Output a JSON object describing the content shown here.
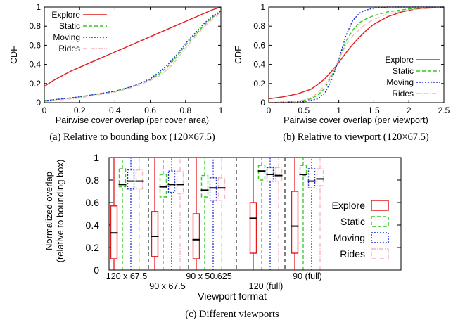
{
  "chart_data": [
    {
      "type": "line",
      "caption": "(a)  Relative to bounding box (120×67.5)",
      "xlabel": "Pairwise cover overlap (per cover area)",
      "ylabel": "CDF",
      "xlim": [
        0,
        1
      ],
      "ylim": [
        0,
        1
      ],
      "xticks": [
        "0",
        "0.2",
        "0.4",
        "0.6",
        "0.8",
        "1"
      ],
      "yticks": [
        "0",
        "0.2",
        "0.4",
        "0.6",
        "0.8",
        "1"
      ],
      "legend_position": "top-left",
      "series": [
        {
          "name": "Explore",
          "color": "#e41a1c",
          "dash": "solid",
          "x": [
            0,
            0.05,
            0.1,
            0.15,
            0.2,
            0.25,
            0.3,
            0.35,
            0.4,
            0.45,
            0.5,
            0.55,
            0.6,
            0.65,
            0.7,
            0.75,
            0.8,
            0.85,
            0.9,
            0.95,
            1.0
          ],
          "y": [
            0.17,
            0.23,
            0.28,
            0.33,
            0.37,
            0.41,
            0.45,
            0.49,
            0.53,
            0.57,
            0.61,
            0.65,
            0.69,
            0.73,
            0.77,
            0.81,
            0.85,
            0.89,
            0.93,
            0.97,
            1.0
          ]
        },
        {
          "name": "Static",
          "color": "#2ecc1f",
          "dash": "5,3",
          "x": [
            0,
            0.2,
            0.4,
            0.5,
            0.6,
            0.65,
            0.7,
            0.75,
            0.8,
            0.85,
            0.9,
            0.95,
            1.0
          ],
          "y": [
            0.02,
            0.06,
            0.12,
            0.17,
            0.24,
            0.3,
            0.38,
            0.48,
            0.6,
            0.7,
            0.8,
            0.89,
            0.95
          ]
        },
        {
          "name": "Moving",
          "color": "#1f2ed8",
          "dash": "2,2",
          "x": [
            0,
            0.2,
            0.4,
            0.5,
            0.6,
            0.65,
            0.7,
            0.75,
            0.8,
            0.85,
            0.9,
            0.95,
            1.0
          ],
          "y": [
            0.02,
            0.06,
            0.12,
            0.17,
            0.25,
            0.32,
            0.4,
            0.5,
            0.62,
            0.72,
            0.82,
            0.9,
            0.96
          ]
        },
        {
          "name": "Rides",
          "color": "#f4b6bd",
          "dash": "6,2,1,2",
          "x": [
            0,
            0.2,
            0.4,
            0.5,
            0.6,
            0.65,
            0.7,
            0.75,
            0.8,
            0.85,
            0.9,
            0.95,
            1.0
          ],
          "y": [
            0.01,
            0.05,
            0.11,
            0.16,
            0.23,
            0.28,
            0.35,
            0.45,
            0.57,
            0.68,
            0.78,
            0.87,
            0.94
          ]
        }
      ]
    },
    {
      "type": "line",
      "caption": "(b)  Relative to viewport (120×67.5)",
      "xlabel": "Pairwise cover overlap (per viewport)",
      "ylabel": "CDF",
      "xlim": [
        0,
        2.5
      ],
      "ylim": [
        0,
        1
      ],
      "xticks": [
        "0",
        "0.5",
        "1",
        "1.5",
        "2",
        "2.5"
      ],
      "yticks": [
        "0",
        "0.2",
        "0.4",
        "0.6",
        "0.8",
        "1"
      ],
      "legend_position": "bottom-right",
      "series": [
        {
          "name": "Explore",
          "color": "#e41a1c",
          "dash": "solid",
          "x": [
            0,
            0.2,
            0.4,
            0.6,
            0.7,
            0.8,
            0.9,
            1.0,
            1.1,
            1.2,
            1.3,
            1.4,
            1.5,
            1.7,
            1.9,
            2.1,
            2.3,
            2.5
          ],
          "y": [
            0.04,
            0.06,
            0.09,
            0.14,
            0.19,
            0.25,
            0.33,
            0.42,
            0.52,
            0.61,
            0.69,
            0.76,
            0.82,
            0.9,
            0.95,
            0.98,
            0.99,
            1.0
          ]
        },
        {
          "name": "Static",
          "color": "#2ecc1f",
          "dash": "5,3",
          "x": [
            0,
            0.4,
            0.6,
            0.7,
            0.8,
            0.9,
            1.0,
            1.1,
            1.2,
            1.3,
            1.4,
            1.5,
            1.7,
            2.0,
            2.5
          ],
          "y": [
            0.0,
            0.01,
            0.04,
            0.08,
            0.15,
            0.28,
            0.45,
            0.64,
            0.76,
            0.84,
            0.88,
            0.91,
            0.95,
            0.98,
            1.0
          ]
        },
        {
          "name": "Moving",
          "color": "#1f2ed8",
          "dash": "2,2",
          "x": [
            0,
            0.5,
            0.7,
            0.8,
            0.9,
            1.0,
            1.1,
            1.2,
            1.3,
            1.4,
            1.5,
            1.7,
            2.0,
            2.5
          ],
          "y": [
            0.0,
            0.01,
            0.04,
            0.1,
            0.24,
            0.45,
            0.7,
            0.86,
            0.94,
            0.97,
            0.99,
            1.0,
            1.0,
            1.0
          ]
        },
        {
          "name": "Rides",
          "color": "#f4b6bd",
          "dash": "6,2,1,2",
          "x": [
            0,
            0.4,
            0.6,
            0.7,
            0.8,
            0.9,
            1.0,
            1.1,
            1.2,
            1.3,
            1.4,
            1.5,
            1.7,
            2.0,
            2.5
          ],
          "y": [
            0.0,
            0.01,
            0.05,
            0.1,
            0.18,
            0.3,
            0.45,
            0.6,
            0.7,
            0.77,
            0.83,
            0.87,
            0.93,
            0.97,
            1.0
          ]
        }
      ]
    },
    {
      "type": "box",
      "caption": "(c)  Different viewports",
      "xlabel": "Viewport format",
      "ylabel": [
        "Normalized overlap",
        "(relative to bounding box)"
      ],
      "ylim": [
        0,
        1
      ],
      "yticks": [
        "0",
        "0.2",
        "0.4",
        "0.6",
        "0.8",
        "1"
      ],
      "categories": [
        "120 x 67.5",
        "90 x 67.5",
        "90 x 50.625",
        "120 (full)",
        "90 (full)"
      ],
      "legend_position": "right",
      "series": [
        {
          "name": "Explore",
          "color": "#e41a1c",
          "dash": "solid",
          "boxes": [
            [
              0,
              0.1,
              0.33,
              0.57,
              1
            ],
            [
              0,
              0.12,
              0.3,
              0.52,
              1
            ],
            [
              0,
              0.1,
              0.27,
              0.5,
              1
            ],
            [
              0,
              0.15,
              0.46,
              0.6,
              1
            ],
            [
              0,
              0.15,
              0.39,
              0.7,
              1
            ]
          ]
        },
        {
          "name": "Static",
          "color": "#2ecc1f",
          "dash": "5,3",
          "boxes": [
            [
              0,
              0.74,
              0.76,
              0.9,
              1
            ],
            [
              0,
              0.65,
              0.74,
              0.85,
              1
            ],
            [
              0,
              0.65,
              0.71,
              0.84,
              1
            ],
            [
              0,
              0.8,
              0.88,
              0.93,
              1
            ],
            [
              0,
              0.84,
              0.85,
              0.93,
              1
            ]
          ]
        },
        {
          "name": "Moving",
          "color": "#1f2ed8",
          "dash": "2,2",
          "boxes": [
            [
              0,
              0.72,
              0.79,
              0.89,
              1
            ],
            [
              0,
              0.69,
              0.76,
              0.88,
              1
            ],
            [
              0,
              0.62,
              0.73,
              0.82,
              1
            ],
            [
              0,
              0.79,
              0.85,
              0.91,
              1
            ],
            [
              0,
              0.73,
              0.79,
              0.9,
              1
            ]
          ]
        },
        {
          "name": "Rides",
          "color": "#f4b6bd",
          "dash": "6,2,1,2",
          "boxes": [
            [
              0,
              0.72,
              0.79,
              0.89,
              1
            ],
            [
              0,
              0.68,
              0.76,
              0.88,
              1
            ],
            [
              0,
              0.62,
              0.73,
              0.82,
              1
            ],
            [
              0,
              0.79,
              0.84,
              0.91,
              1
            ],
            [
              0,
              0.75,
              0.81,
              0.9,
              1
            ]
          ]
        }
      ]
    }
  ]
}
